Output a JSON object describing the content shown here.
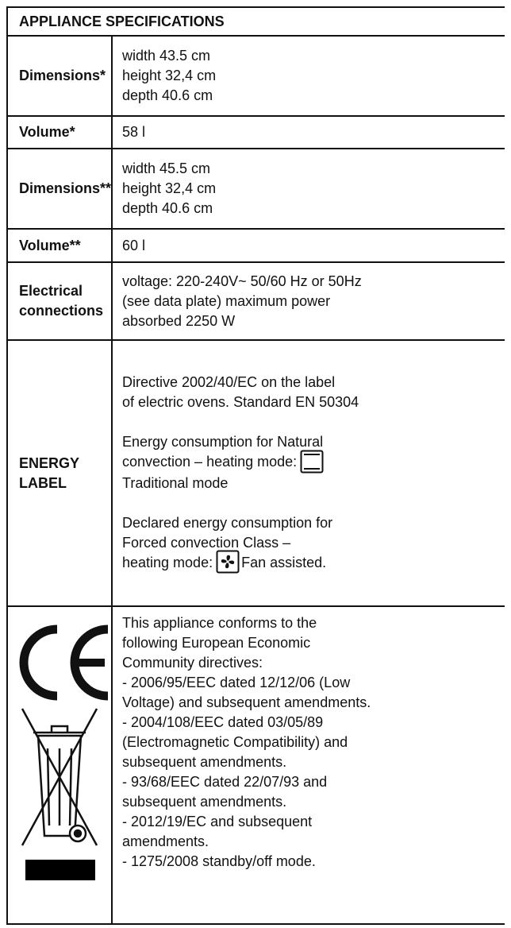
{
  "header": {
    "title": "APPLIANCE SPECIFICATIONS"
  },
  "rows": [
    {
      "label": "Dimensions*",
      "lines": [
        "width 43.5 cm",
        "height 32,4 cm",
        "depth 40.6 cm"
      ]
    },
    {
      "label": "Volume*",
      "lines": [
        "58 l"
      ]
    },
    {
      "label": "Dimensions**",
      "lines": [
        "width 45.5 cm",
        "height 32,4 cm",
        "depth 40.6 cm"
      ]
    },
    {
      "label": "Volume**",
      "lines": [
        "60 l"
      ]
    },
    {
      "label": "Electrical connections",
      "lines": [
        "voltage: 220-240V~ 50/60 Hz or 50Hz",
        "(see data plate) maximum power",
        "absorbed 2250 W"
      ]
    }
  ],
  "energy_label": {
    "label": "ENERGY LABEL",
    "paragraphs": [
      [
        "Directive 2002/40/EC on the label",
        "of electric ovens. Standard EN 50304"
      ],
      [
        "Energy consumption for Natural",
        "convection – heating mode:",
        "Traditional mode"
      ],
      [
        "Declared energy consumption for",
        "Forced convection Class –",
        "heating mode:",
        "Fan assisted."
      ]
    ]
  },
  "compliance": {
    "lines": [
      "This appliance conforms to the",
      "following European Economic",
      "Community directives:",
      "- 2006/95/EEC dated 12/12/06 (Low",
      "Voltage) and subsequent amendments.",
      "- 2004/108/EEC dated 03/05/89",
      "(Electromagnetic Compatibility) and",
      "subsequent amendments.",
      "- 93/68/EEC dated 22/07/93 and",
      "subsequent amendments.",
      "- 2012/19/EC and subsequent",
      "amendments.",
      "- 1275/2008 standby/off mode."
    ]
  }
}
